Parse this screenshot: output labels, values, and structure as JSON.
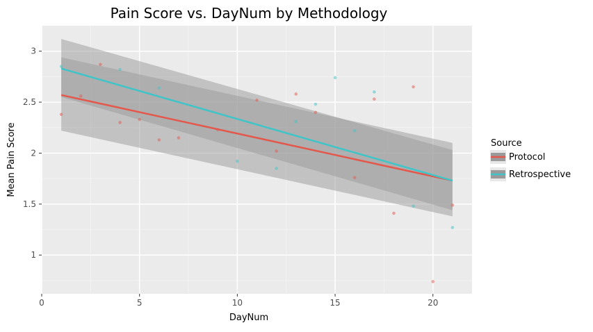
{
  "chart_data": {
    "type": "scatter",
    "title": "Pain Score vs. DayNum by Methodology",
    "xlabel": "DayNum",
    "ylabel": "Mean Pain Score",
    "xlim": [
      0,
      22
    ],
    "ylim": [
      0.62,
      3.25
    ],
    "x_ticks": [
      0,
      5,
      10,
      15,
      20
    ],
    "y_ticks": [
      1,
      1.5,
      2,
      2.5,
      3
    ],
    "x_tick_labels": [
      "0",
      "5",
      "10",
      "15",
      "20"
    ],
    "y_tick_labels": [
      "1",
      "1.5",
      "2",
      "2.5",
      "3"
    ],
    "grid": true,
    "legend": {
      "title": "Source",
      "position": "right"
    },
    "series": [
      {
        "name": "Protocol",
        "color": "#e4574b",
        "points": [
          {
            "x": 1,
            "y": 2.38
          },
          {
            "x": 2,
            "y": 2.56
          },
          {
            "x": 3,
            "y": 2.87
          },
          {
            "x": 4,
            "y": 2.3
          },
          {
            "x": 5,
            "y": 2.33
          },
          {
            "x": 6,
            "y": 2.13
          },
          {
            "x": 7,
            "y": 2.15
          },
          {
            "x": 9,
            "y": 2.23
          },
          {
            "x": 11,
            "y": 2.52
          },
          {
            "x": 12,
            "y": 2.02
          },
          {
            "x": 13,
            "y": 2.58
          },
          {
            "x": 14,
            "y": 2.4
          },
          {
            "x": 16,
            "y": 1.76
          },
          {
            "x": 17,
            "y": 2.53
          },
          {
            "x": 18,
            "y": 1.41
          },
          {
            "x": 19,
            "y": 2.65
          },
          {
            "x": 20,
            "y": 0.74
          },
          {
            "x": 21,
            "y": 1.49
          }
        ],
        "fit": {
          "x": [
            1,
            21
          ],
          "y": [
            2.57,
            1.73
          ]
        },
        "band": {
          "x": [
            1,
            21
          ],
          "lower": [
            2.22,
            1.38
          ],
          "upper": [
            2.94,
            2.1
          ]
        }
      },
      {
        "name": "Retrospective",
        "color": "#3fc4c8",
        "points": [
          {
            "x": 1,
            "y": 2.85
          },
          {
            "x": 4,
            "y": 2.82
          },
          {
            "x": 6,
            "y": 2.64
          },
          {
            "x": 10,
            "y": 1.92
          },
          {
            "x": 12,
            "y": 1.85
          },
          {
            "x": 13,
            "y": 2.31
          },
          {
            "x": 14,
            "y": 2.48
          },
          {
            "x": 15,
            "y": 2.74
          },
          {
            "x": 16,
            "y": 2.22
          },
          {
            "x": 17,
            "y": 2.6
          },
          {
            "x": 19,
            "y": 1.48
          },
          {
            "x": 21,
            "y": 1.27
          }
        ],
        "fit": {
          "x": [
            1,
            21
          ],
          "y": [
            2.83,
            1.73
          ]
        },
        "band": {
          "x": [
            1,
            21
          ],
          "lower": [
            2.55,
            1.44
          ],
          "upper": [
            3.12,
            2.03
          ]
        }
      }
    ]
  }
}
